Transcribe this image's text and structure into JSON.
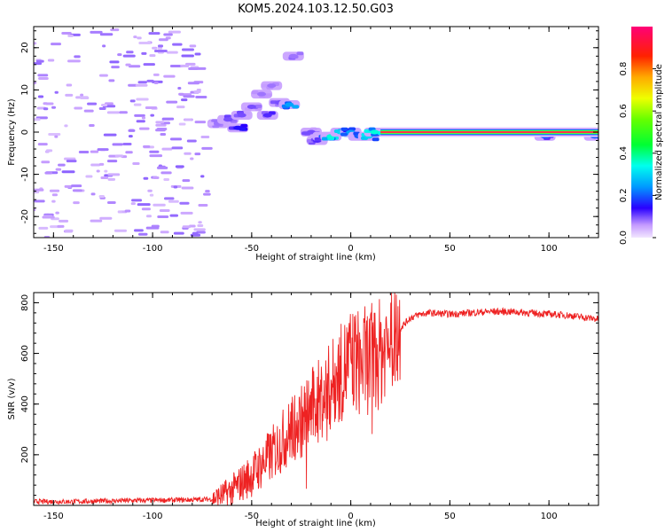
{
  "title": "KOM5.2024.103.12.50.G03",
  "chart_data": [
    {
      "type": "heatmap",
      "xlabel": "Height of straight line (km)",
      "ylabel": "Frequency (Hz)",
      "xlim": [
        -160,
        125
      ],
      "ylim": [
        -25,
        25
      ],
      "xticks": [
        -150,
        -100,
        -50,
        0,
        50,
        100
      ],
      "yticks": [
        -20,
        -10,
        0,
        10,
        20
      ],
      "colorbar": {
        "label": "Normalized spectral amplitude",
        "range": [
          0,
          1
        ],
        "ticks": [
          0.0,
          0.2,
          0.4,
          0.6,
          0.8
        ]
      },
      "signal_line": {
        "x_range": [
          15,
          125
        ],
        "frequency": 0,
        "amplitude": 1.0
      },
      "blobs": [
        {
          "x": -67,
          "y": 2,
          "amplitude": 0.08
        },
        {
          "x": -62,
          "y": 3,
          "amplitude": 0.1
        },
        {
          "x": -57,
          "y": 1,
          "amplitude": 0.15
        },
        {
          "x": -55,
          "y": 4,
          "amplitude": 0.1
        },
        {
          "x": -50,
          "y": 6,
          "amplitude": 0.1
        },
        {
          "x": -45,
          "y": 9,
          "amplitude": 0.08
        },
        {
          "x": -40,
          "y": 11,
          "amplitude": 0.08
        },
        {
          "x": -42,
          "y": 4,
          "amplitude": 0.12
        },
        {
          "x": -36,
          "y": 7,
          "amplitude": 0.1
        },
        {
          "x": -31,
          "y": 6.5,
          "amplitude": 0.25
        },
        {
          "x": -29,
          "y": 18,
          "amplitude": 0.08
        },
        {
          "x": -20,
          "y": 0,
          "amplitude": 0.1
        },
        {
          "x": -17,
          "y": -2,
          "amplitude": 0.12
        },
        {
          "x": -14,
          "y": -1,
          "amplitude": 0.2
        },
        {
          "x": -10,
          "y": -1,
          "amplitude": 0.35
        },
        {
          "x": -5,
          "y": 0,
          "amplitude": 0.3
        },
        {
          "x": 0,
          "y": 0,
          "amplitude": 0.25
        },
        {
          "x": 4,
          "y": -1,
          "amplitude": 0.2
        },
        {
          "x": 9,
          "y": -1,
          "amplitude": 0.3
        },
        {
          "x": 12,
          "y": 0,
          "amplitude": 0.35
        },
        {
          "x": 98,
          "y": -1,
          "amplitude": 0.2
        },
        {
          "x": 123,
          "y": -1,
          "amplitude": 0.2
        }
      ],
      "noise_region_x": [
        -160,
        -72
      ],
      "noise_amplitude": 0.05
    },
    {
      "type": "line",
      "xlabel": "Height of straight line (km)",
      "ylabel": "SNR (v/v)",
      "xlim": [
        -160,
        125
      ],
      "ylim": [
        0,
        840
      ],
      "xticks": [
        -150,
        -100,
        -50,
        0,
        50,
        100
      ],
      "yticks": [
        200,
        400,
        600,
        800
      ],
      "color": "#ee2222",
      "series": [
        {
          "x": [
            -160,
            -140,
            -120,
            -100,
            -80,
            -70,
            -65,
            -60,
            -55,
            -50,
            -45,
            -40,
            -35,
            -30,
            -25,
            -20,
            -15,
            -10,
            -5,
            0,
            5,
            10,
            15,
            20,
            25,
            30,
            35,
            40,
            50,
            60,
            70,
            80,
            90,
            100,
            110,
            120,
            125
          ],
          "values": [
            15,
            15,
            18,
            20,
            22,
            25,
            40,
            60,
            90,
            120,
            160,
            200,
            250,
            300,
            330,
            380,
            420,
            470,
            520,
            580,
            560,
            580,
            600,
            650,
            700,
            740,
            755,
            760,
            755,
            760,
            765,
            765,
            760,
            755,
            750,
            740,
            735
          ]
        }
      ]
    }
  ]
}
